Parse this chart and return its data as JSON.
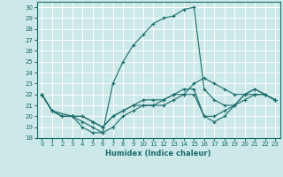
{
  "xlabel": "Humidex (Indice chaleur)",
  "bg_color": "#cce8e8",
  "grid_color": "#b0d8d8",
  "line_color": "#1a6b6b",
  "xlim": [
    -0.5,
    23.5
  ],
  "ylim": [
    18,
    30.5
  ],
  "xticks": [
    0,
    1,
    2,
    3,
    4,
    5,
    6,
    7,
    8,
    9,
    10,
    11,
    12,
    13,
    14,
    15,
    16,
    17,
    18,
    19,
    20,
    21,
    22,
    23
  ],
  "yticks": [
    18,
    19,
    20,
    21,
    22,
    23,
    24,
    25,
    26,
    27,
    28,
    29,
    30
  ],
  "lines": [
    {
      "x": [
        0,
        1,
        3,
        4,
        5,
        6,
        7,
        8,
        9,
        10,
        11,
        12,
        13,
        14,
        15,
        16,
        17,
        18,
        19,
        20,
        21,
        22,
        23
      ],
      "y": [
        22,
        20.5,
        20,
        19,
        18.5,
        18.5,
        23,
        25,
        26.5,
        27.5,
        28.5,
        29,
        29.2,
        29.8,
        30,
        22.5,
        21.5,
        21,
        21,
        22,
        22.5,
        22,
        21.5
      ]
    },
    {
      "x": [
        0,
        1,
        2,
        3,
        4,
        5,
        6,
        7,
        8,
        9,
        10,
        11,
        12,
        13,
        14,
        15,
        16,
        17,
        18,
        19,
        20,
        21,
        22,
        23
      ],
      "y": [
        22,
        20.5,
        20,
        20,
        20,
        19.5,
        19,
        20,
        20.5,
        21,
        21.5,
        21.5,
        21.5,
        22,
        22,
        23,
        23.5,
        23,
        22.5,
        22,
        22,
        22,
        22,
        21.5
      ]
    },
    {
      "x": [
        0,
        1,
        2,
        3,
        4,
        5,
        6,
        7,
        8,
        9,
        10,
        11,
        12,
        13,
        14,
        15,
        16,
        17,
        18,
        19,
        20,
        21,
        22,
        23
      ],
      "y": [
        22,
        20.5,
        20,
        20,
        20,
        19.5,
        19,
        20,
        20.5,
        21,
        21,
        21,
        21,
        21.5,
        22,
        22,
        20,
        20,
        20.5,
        21,
        21.5,
        22,
        22,
        21.5
      ]
    },
    {
      "x": [
        0,
        1,
        2,
        3,
        4,
        5,
        6,
        7,
        8,
        9,
        10,
        11,
        12,
        13,
        14,
        15,
        16,
        17,
        18,
        19,
        20,
        21,
        22,
        23
      ],
      "y": [
        22,
        20.5,
        20,
        20,
        19.5,
        19,
        18.5,
        19,
        20,
        20.5,
        21,
        21,
        21.5,
        22,
        22.5,
        22.5,
        20,
        19.5,
        20,
        21,
        22,
        22.5,
        22,
        21.5
      ]
    }
  ]
}
